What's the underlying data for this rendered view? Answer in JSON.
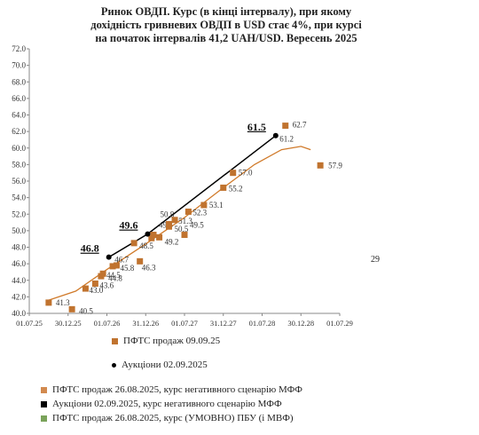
{
  "chart_data": {
    "type": "scatter",
    "title_lines": [
      "Ринок ОВДП. Курс (в кінці інтервалу), при якому",
      "дохідність гривневих ОВДП в USD стає  4%, при курсі",
      "на початок інтервалів 41,2 UAH/USD. Вересень 2025"
    ],
    "y_ticks": [
      "40.0",
      "42.0",
      "44.0",
      "46.0",
      "48.0",
      "50.0",
      "52.0",
      "54.0",
      "56.0",
      "58.0",
      "60.0",
      "62.0",
      "64.0",
      "66.0",
      "68.0",
      "70.0",
      "72.0"
    ],
    "x_ticks": [
      "01.07.25",
      "30.12.25",
      "01.07.26",
      "31.12.26",
      "01.07.27",
      "31.12.27",
      "01.07.28",
      "30.12.28",
      "01.07.29"
    ],
    "ylim": [
      40,
      72
    ],
    "xlim": [
      0,
      8
    ],
    "series": [
      {
        "name": "ПФТС продаж 09.09.25",
        "color": "#c0732f",
        "points": [
          {
            "x": 0.5,
            "y": 41.3,
            "label": "41.3"
          },
          {
            "x": 1.1,
            "y": 40.5,
            "label": "40.5"
          },
          {
            "x": 1.45,
            "y": 43.0,
            "label": "43.0"
          },
          {
            "x": 1.7,
            "y": 43.6,
            "label": "43.6"
          },
          {
            "x": 1.85,
            "y": 44.5,
            "label": "44.5"
          },
          {
            "x": 1.9,
            "y": 44.8,
            "label": "44.8"
          },
          {
            "x": 2.15,
            "y": 45.7,
            "label": ""
          },
          {
            "x": 2.25,
            "y": 45.8,
            "label": "45.8"
          },
          {
            "x": 2.7,
            "y": 48.5,
            "label": "48.5"
          },
          {
            "x": 2.85,
            "y": 46.3,
            "label": "46.3"
          },
          {
            "x": 3.15,
            "y": 49.1,
            "label": ""
          },
          {
            "x": 3.2,
            "y": 49.5,
            "label": "49.5"
          },
          {
            "x": 3.35,
            "y": 49.2,
            "label": "49.2"
          },
          {
            "x": 3.6,
            "y": 50.5,
            "label": "50.5"
          },
          {
            "x": 3.6,
            "y": 50.8,
            "label": "50.8"
          },
          {
            "x": 3.75,
            "y": 51.3,
            "label": "51.3"
          },
          {
            "x": 4.0,
            "y": 49.5,
            "label": "49.5"
          },
          {
            "x": 4.1,
            "y": 52.3,
            "label": "52.3"
          },
          {
            "x": 4.5,
            "y": 53.1,
            "label": "53.1"
          },
          {
            "x": 5.0,
            "y": 55.2,
            "label": "55.2"
          },
          {
            "x": 5.25,
            "y": 57.0,
            "label": "57.0"
          },
          {
            "x": 6.6,
            "y": 62.7,
            "label": "62.7"
          },
          {
            "x": 7.5,
            "y": 57.9,
            "label": "57.9"
          }
        ]
      },
      {
        "name": "Аукціони 02.09.2025",
        "color": "#000000",
        "points": [
          {
            "x": 2.05,
            "y": 46.8,
            "label": "46.8"
          },
          {
            "x": 3.05,
            "y": 49.6,
            "label": "49.6"
          },
          {
            "x": 6.35,
            "y": 61.5,
            "label": "61.5"
          }
        ]
      }
    ],
    "extra_labels": [
      "46.7",
      "61.2"
    ],
    "legend": [
      {
        "label": "ПФТС продаж 26.08.2025, курс негативного сценарію МФФ",
        "color": "#d28a4f"
      },
      {
        "label": "Аукціони 02.09.2025, курс негативного сценарію МФФ",
        "color": "#000000"
      },
      {
        "label": "ПФТС продаж 26.08.2025, курс (УМОВНО) ПБУ (і МВФ)",
        "color": "#7aa35a"
      }
    ],
    "edge_label": "29"
  }
}
